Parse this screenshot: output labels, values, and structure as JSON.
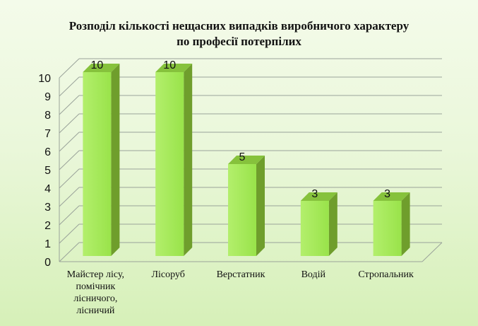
{
  "chart_data": {
    "type": "bar",
    "title_lines": [
      "Розподіл кількості нещасних випадків виробничого характеру",
      "по професії потерпілих"
    ],
    "categories": [
      [
        "Майстер лісу,",
        "помічник",
        "лісничого,",
        "лісничий"
      ],
      [
        "Лісоруб"
      ],
      [
        "Верстатник"
      ],
      [
        "Водій"
      ],
      [
        "Стропальник"
      ]
    ],
    "values": [
      10,
      10,
      5,
      3,
      3
    ],
    "data_labels": [
      "10",
      "10",
      "5",
      "3",
      "3"
    ],
    "y_ticks": [
      "0",
      "1",
      "2",
      "3",
      "4",
      "5",
      "6",
      "7",
      "8",
      "9",
      "10"
    ],
    "ylim": [
      0,
      10
    ],
    "grid": true,
    "three_d": true,
    "xlabel": "",
    "ylabel": "",
    "colors": {
      "bar_front": "#99e34a",
      "bar_front_light": "#b3ef6c",
      "bar_side": "#6f9e2c",
      "bar_top": "#86c23c",
      "grid": "#9aa39a"
    }
  }
}
